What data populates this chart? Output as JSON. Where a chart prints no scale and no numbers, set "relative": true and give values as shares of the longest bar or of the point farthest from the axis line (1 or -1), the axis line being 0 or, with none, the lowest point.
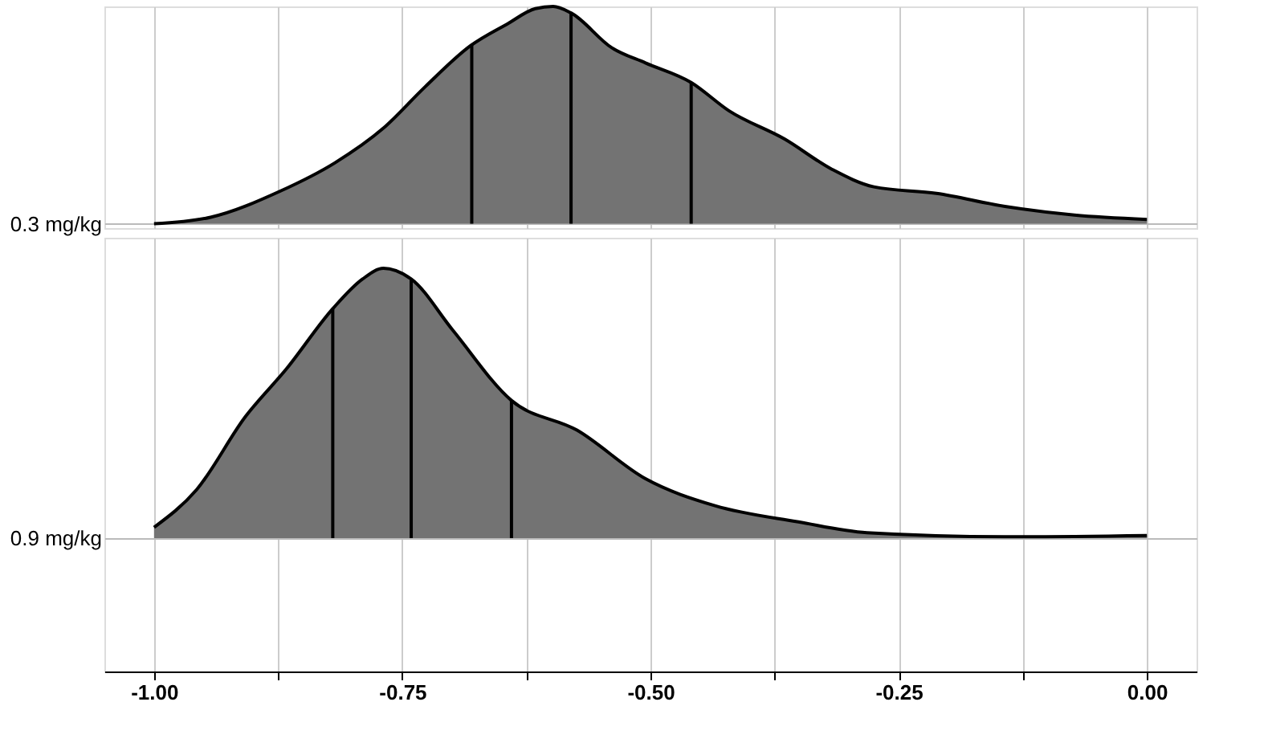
{
  "chart_data": [
    {
      "type": "area",
      "ylabel": "0.3 mg/kg",
      "relative": true,
      "grid": true,
      "tick_labels": false,
      "xlim": [
        -1.05,
        0.05
      ],
      "xticks": [
        -1.0,
        {
          "value": -0.875,
          "label": null
        },
        -0.75,
        {
          "value": -0.625,
          "label": null
        },
        -0.5,
        {
          "value": -0.375,
          "label": null
        },
        -0.25,
        {
          "value": -0.125,
          "label": null
        },
        0.0
      ],
      "series": [
        {
          "color": "#737373",
          "x": [
            -1.0,
            -0.943,
            -0.873,
            -0.818,
            -0.769,
            -0.727,
            -0.681,
            -0.644,
            -0.616,
            -0.598,
            -0.58,
            -0.539,
            -0.505,
            -0.459,
            -0.421,
            -0.365,
            -0.317,
            -0.275,
            -0.212,
            -0.143,
            -0.073,
            0.0
          ],
          "values": [
            0,
            0.03,
            0.15,
            0.28,
            0.44,
            0.63,
            0.82,
            0.92,
            0.99,
            1.0,
            0.97,
            0.81,
            0.74,
            0.65,
            0.52,
            0.39,
            0.25,
            0.17,
            0.14,
            0.08,
            0.04,
            0.02
          ]
        }
      ],
      "ref_lines": [
        {
          "axis": "x",
          "value": -0.68,
          "color": "#000000"
        },
        {
          "axis": "x",
          "value": -0.58,
          "color": "#000000"
        },
        {
          "axis": "x",
          "value": -0.459,
          "color": "#000000"
        }
      ]
    },
    {
      "type": "area",
      "ylabel": "0.9 mg/kg",
      "relative": true,
      "grid": true,
      "tick_labels": "x",
      "xlim": [
        -1.05,
        0.05
      ],
      "xticks": [
        {
          "value": -1.0,
          "label": "-1.00"
        },
        {
          "value": -0.875,
          "label": null
        },
        -0.75,
        {
          "value": -0.625,
          "label": null
        },
        {
          "value": -0.5,
          "label": "-0.50"
        },
        {
          "value": -0.375,
          "label": null
        },
        -0.25,
        {
          "value": -0.125,
          "label": null
        },
        {
          "value": 0.0,
          "label": "0.00"
        }
      ],
      "series": [
        {
          "color": "#737373",
          "x": [
            -1.0,
            -0.957,
            -0.908,
            -0.866,
            -0.82,
            -0.79,
            -0.769,
            -0.741,
            -0.699,
            -0.64,
            -0.574,
            -0.505,
            -0.435,
            -0.351,
            -0.282,
            -0.143,
            0.0
          ],
          "values": [
            0.04,
            0.18,
            0.45,
            0.63,
            0.85,
            0.96,
            1.0,
            0.96,
            0.77,
            0.51,
            0.4,
            0.22,
            0.12,
            0.06,
            0.02,
            0.005,
            0.01
          ]
        }
      ],
      "ref_lines": [
        {
          "axis": "x",
          "value": -0.82,
          "color": "#000000"
        },
        {
          "axis": "x",
          "value": -0.741,
          "color": "#000000"
        },
        {
          "axis": "x",
          "value": -0.64,
          "color": "#000000"
        }
      ]
    }
  ]
}
